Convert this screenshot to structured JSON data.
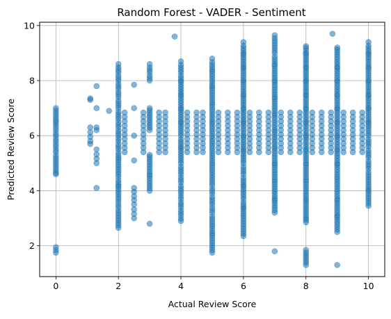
{
  "chart_data": {
    "type": "scatter",
    "title": "Random Forest - VADER - Sentiment",
    "xlabel": "Actual Review Score",
    "ylabel": "Predicted Review Score",
    "xlim": [
      -0.52,
      10.52
    ],
    "ylim": [
      0.88,
      10.12
    ],
    "xticks": [
      0,
      2,
      4,
      6,
      8,
      10
    ],
    "yticks": [
      2,
      4,
      6,
      8,
      10
    ],
    "grid": true,
    "point_color": "#1f77b4",
    "point_alpha": 0.55,
    "x_levels": [
      0,
      1.1,
      1.3,
      1.7,
      2,
      2.2,
      2.5,
      2.8,
      3,
      3.3,
      3.5,
      3.8,
      4,
      4.2,
      4.5,
      4.7,
      5,
      5.2,
      5.5,
      5.8,
      6,
      6.2,
      6.5,
      6.8,
      7,
      7.2,
      7.5,
      7.8,
      8,
      8.2,
      8.5,
      8.8,
      9,
      9.2,
      9.5,
      9.8,
      10
    ],
    "series": [
      {
        "name": "",
        "points": [
          [
            0,
            1.75
          ],
          [
            0,
            1.95
          ],
          [
            0,
            4.6
          ],
          [
            0,
            4.65
          ],
          [
            0,
            5.4
          ],
          [
            0,
            5.6
          ],
          [
            0,
            5.8
          ],
          [
            0,
            6.0
          ],
          [
            0,
            6.2
          ],
          [
            0,
            6.3
          ],
          [
            0,
            6.55
          ],
          [
            0,
            7.0
          ],
          [
            1.1,
            5.7
          ],
          [
            1.1,
            5.8
          ],
          [
            1.1,
            6.3
          ],
          [
            1.1,
            7.3
          ],
          [
            1.1,
            7.35
          ],
          [
            1.3,
            4.1
          ],
          [
            1.3,
            5.0
          ],
          [
            1.3,
            5.5
          ],
          [
            1.3,
            6.2
          ],
          [
            1.3,
            6.3
          ],
          [
            1.3,
            7.0
          ],
          [
            1.3,
            7.8
          ],
          [
            1.7,
            6.9
          ],
          [
            2,
            2.65
          ],
          [
            2,
            3.4
          ],
          [
            2,
            3.6
          ],
          [
            2,
            3.7
          ],
          [
            2,
            4.2
          ],
          [
            2,
            4.5
          ],
          [
            2,
            5.2
          ],
          [
            2,
            5.5
          ],
          [
            2,
            5.8
          ],
          [
            2,
            6.0
          ],
          [
            2,
            6.3
          ],
          [
            2,
            6.6
          ],
          [
            2,
            7.0
          ],
          [
            2,
            7.4
          ],
          [
            2,
            7.7
          ],
          [
            2,
            8.0
          ],
          [
            2,
            8.3
          ],
          [
            2,
            8.6
          ],
          [
            2.5,
            3.0
          ],
          [
            2.5,
            3.5
          ],
          [
            2.5,
            3.8
          ],
          [
            2.5,
            4.1
          ],
          [
            2.5,
            5.1
          ],
          [
            2.5,
            6.0
          ],
          [
            2.5,
            7.0
          ],
          [
            2.5,
            7.85
          ],
          [
            3,
            2.8
          ],
          [
            3,
            4.0
          ],
          [
            3,
            4.6
          ],
          [
            3,
            5.3
          ],
          [
            3,
            6.2
          ],
          [
            3,
            7.0
          ],
          [
            3,
            8.0
          ],
          [
            3,
            8.3
          ],
          [
            3,
            8.6
          ],
          [
            4,
            2.9
          ],
          [
            4,
            3.1
          ],
          [
            4,
            3.4
          ],
          [
            4,
            3.7
          ],
          [
            4,
            3.9
          ],
          [
            4,
            4.3
          ],
          [
            4,
            4.6
          ],
          [
            4,
            5.0
          ],
          [
            4,
            5.6
          ],
          [
            4,
            6.0
          ],
          [
            4,
            6.5
          ],
          [
            4,
            7.0
          ],
          [
            4,
            7.5
          ],
          [
            4,
            8.0
          ],
          [
            4,
            8.3
          ],
          [
            4,
            8.7
          ],
          [
            3.8,
            9.6
          ],
          [
            5,
            1.75
          ],
          [
            5,
            2.45
          ],
          [
            5,
            2.8
          ],
          [
            5,
            3.2
          ],
          [
            5,
            3.5
          ],
          [
            5,
            3.9
          ],
          [
            5,
            4.2
          ],
          [
            5,
            5.0
          ],
          [
            5,
            5.8
          ],
          [
            5,
            6.5
          ],
          [
            5,
            7.2
          ],
          [
            5,
            7.8
          ],
          [
            5,
            8.4
          ],
          [
            5,
            8.8
          ],
          [
            6,
            2.35
          ],
          [
            6,
            2.9
          ],
          [
            6,
            3.4
          ],
          [
            6,
            3.7
          ],
          [
            6,
            4.2
          ],
          [
            6,
            4.6
          ],
          [
            6,
            5.0
          ],
          [
            6,
            5.5
          ],
          [
            6,
            6.0
          ],
          [
            6,
            6.5
          ],
          [
            6,
            7.0
          ],
          [
            6,
            7.5
          ],
          [
            6,
            8.0
          ],
          [
            6,
            8.5
          ],
          [
            6,
            9.0
          ],
          [
            6,
            9.4
          ],
          [
            7,
            1.8
          ],
          [
            7,
            3.2
          ],
          [
            7,
            3.7
          ],
          [
            7,
            4.4
          ],
          [
            7,
            5.0
          ],
          [
            7,
            5.6
          ],
          [
            7,
            6.2
          ],
          [
            7,
            6.8
          ],
          [
            7,
            7.4
          ],
          [
            7,
            8.0
          ],
          [
            7,
            8.6
          ],
          [
            7,
            9.0
          ],
          [
            7,
            9.65
          ],
          [
            8,
            1.3
          ],
          [
            8,
            1.85
          ],
          [
            8,
            2.85
          ],
          [
            8,
            3.0
          ],
          [
            8,
            3.7
          ],
          [
            8,
            4.4
          ],
          [
            8,
            5.0
          ],
          [
            8,
            5.5
          ],
          [
            8,
            6.0
          ],
          [
            8,
            6.5
          ],
          [
            8,
            7.0
          ],
          [
            8,
            7.5
          ],
          [
            8,
            8.0
          ],
          [
            8,
            8.5
          ],
          [
            8,
            9.0
          ],
          [
            8,
            9.25
          ],
          [
            9,
            1.3
          ],
          [
            9,
            2.5
          ],
          [
            9,
            3.1
          ],
          [
            9,
            3.7
          ],
          [
            9,
            4.5
          ],
          [
            9,
            5.0
          ],
          [
            9,
            5.5
          ],
          [
            9,
            6.0
          ],
          [
            9,
            6.5
          ],
          [
            9,
            7.0
          ],
          [
            9,
            7.5
          ],
          [
            9,
            8.0
          ],
          [
            9,
            8.5
          ],
          [
            9,
            9.2
          ],
          [
            8.85,
            9.7
          ],
          [
            10,
            3.45
          ],
          [
            10,
            4.05
          ],
          [
            10,
            4.8
          ],
          [
            10,
            5.2
          ],
          [
            10,
            5.6
          ],
          [
            10,
            6.0
          ],
          [
            10,
            6.5
          ],
          [
            10,
            7.0
          ],
          [
            10,
            7.5
          ],
          [
            10,
            8.0
          ],
          [
            10,
            8.5
          ],
          [
            10,
            9.0
          ],
          [
            10,
            9.4
          ]
        ]
      }
    ]
  }
}
